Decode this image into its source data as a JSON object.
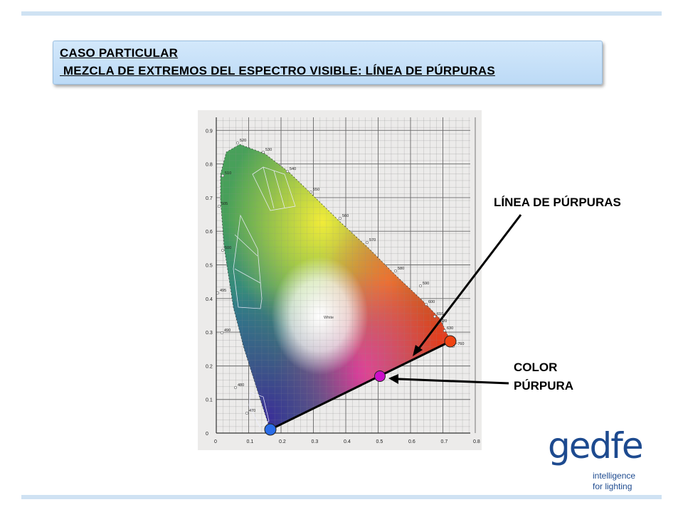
{
  "title": {
    "line1": "CASO PARTICULAR",
    "line2": " MEZCLA DE EXTREMOS DEL ESPECTRO VISIBLE: LÍNEA DE PÚRPURAS"
  },
  "labels": {
    "line_of_purples": "LÍNEA DE PÚRPURAS",
    "purple_color_line1": "COLOR",
    "purple_color_line2": "PÚRPURA"
  },
  "diagram": {
    "x_ticks": [
      "0",
      "0.1",
      "0.2",
      "0.3",
      "0.4",
      "0.5",
      "0.6",
      "0.7",
      "0.8"
    ],
    "y_ticks": [
      "0",
      "0.1",
      "0.2",
      "0.3",
      "0.4",
      "0.5",
      "0.6",
      "0.7",
      "0.8",
      "0.9"
    ],
    "wavelength_labels": [
      "520",
      "530",
      "540",
      "550",
      "560",
      "570",
      "580",
      "590",
      "600",
      "610",
      "620",
      "630",
      "~760",
      "510",
      "505",
      "500",
      "495",
      "490",
      "480",
      "470"
    ],
    "white_label": "White",
    "colors": {
      "point_blue": "#2b6de8",
      "point_magenta": "#cc10c8",
      "point_red": "#f04412"
    }
  },
  "logo": {
    "word": "gedfe",
    "tagline1": "intelligence",
    "tagline2": "for lighting"
  }
}
